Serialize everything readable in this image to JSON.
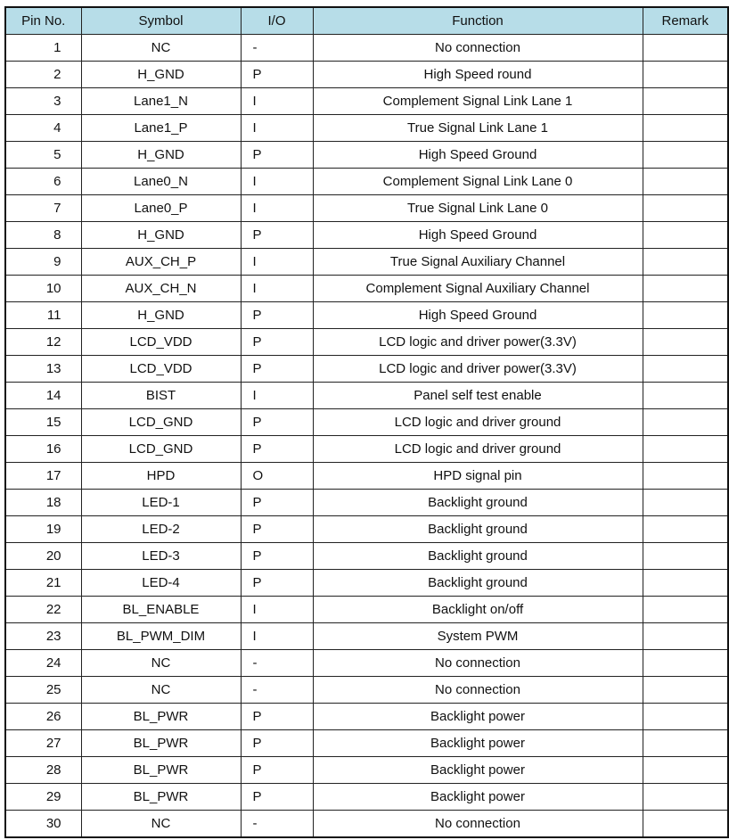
{
  "table": {
    "headers": [
      "Pin No.",
      "Symbol",
      "I/O",
      "Function",
      "Remark"
    ],
    "header_color": "#b7dde8",
    "rows": [
      [
        "1",
        "NC",
        "-",
        "No connection",
        ""
      ],
      [
        "2",
        "H_GND",
        "P",
        "High Speed round",
        ""
      ],
      [
        "3",
        "Lane1_N",
        "I",
        "Complement Signal Link Lane 1",
        ""
      ],
      [
        "4",
        "Lane1_P",
        "I",
        "True Signal Link Lane 1",
        ""
      ],
      [
        "5",
        "H_GND",
        "P",
        "High Speed Ground",
        ""
      ],
      [
        "6",
        "Lane0_N",
        "I",
        "Complement Signal Link Lane 0",
        ""
      ],
      [
        "7",
        "Lane0_P",
        "I",
        "True Signal Link Lane 0",
        ""
      ],
      [
        "8",
        "H_GND",
        "P",
        "High Speed Ground",
        ""
      ],
      [
        "9",
        "AUX_CH_P",
        "I",
        "True Signal Auxiliary Channel",
        ""
      ],
      [
        "10",
        "AUX_CH_N",
        "I",
        "Complement Signal Auxiliary Channel",
        ""
      ],
      [
        "11",
        "H_GND",
        "P",
        "High Speed Ground",
        ""
      ],
      [
        "12",
        "LCD_VDD",
        "P",
        "LCD logic and driver power(3.3V)",
        ""
      ],
      [
        "13",
        "LCD_VDD",
        "P",
        "LCD logic and driver power(3.3V)",
        ""
      ],
      [
        "14",
        "BIST",
        "I",
        "Panel self test enable",
        ""
      ],
      [
        "15",
        "LCD_GND",
        "P",
        "LCD logic and driver ground",
        ""
      ],
      [
        "16",
        "LCD_GND",
        "P",
        "LCD logic and driver ground",
        ""
      ],
      [
        "17",
        "HPD",
        "O",
        "HPD signal pin",
        ""
      ],
      [
        "18",
        "LED-1",
        "P",
        "Backlight ground",
        ""
      ],
      [
        "19",
        "LED-2",
        "P",
        "Backlight ground",
        ""
      ],
      [
        "20",
        "LED-3",
        "P",
        "Backlight ground",
        ""
      ],
      [
        "21",
        "LED-4",
        "P",
        "Backlight ground",
        ""
      ],
      [
        "22",
        "BL_ENABLE",
        "I",
        "Backlight on/off",
        ""
      ],
      [
        "23",
        "BL_PWM_DIM",
        "I",
        "System PWM",
        ""
      ],
      [
        "24",
        "NC",
        "-",
        "No connection",
        ""
      ],
      [
        "25",
        "NC",
        "-",
        "No connection",
        ""
      ],
      [
        "26",
        "BL_PWR",
        "P",
        "Backlight power",
        ""
      ],
      [
        "27",
        "BL_PWR",
        "P",
        "Backlight power",
        ""
      ],
      [
        "28",
        "BL_PWR",
        "P",
        "Backlight power",
        ""
      ],
      [
        "29",
        "BL_PWR",
        "P",
        "Backlight power",
        ""
      ],
      [
        "30",
        "NC",
        "-",
        "No connection",
        ""
      ]
    ]
  }
}
